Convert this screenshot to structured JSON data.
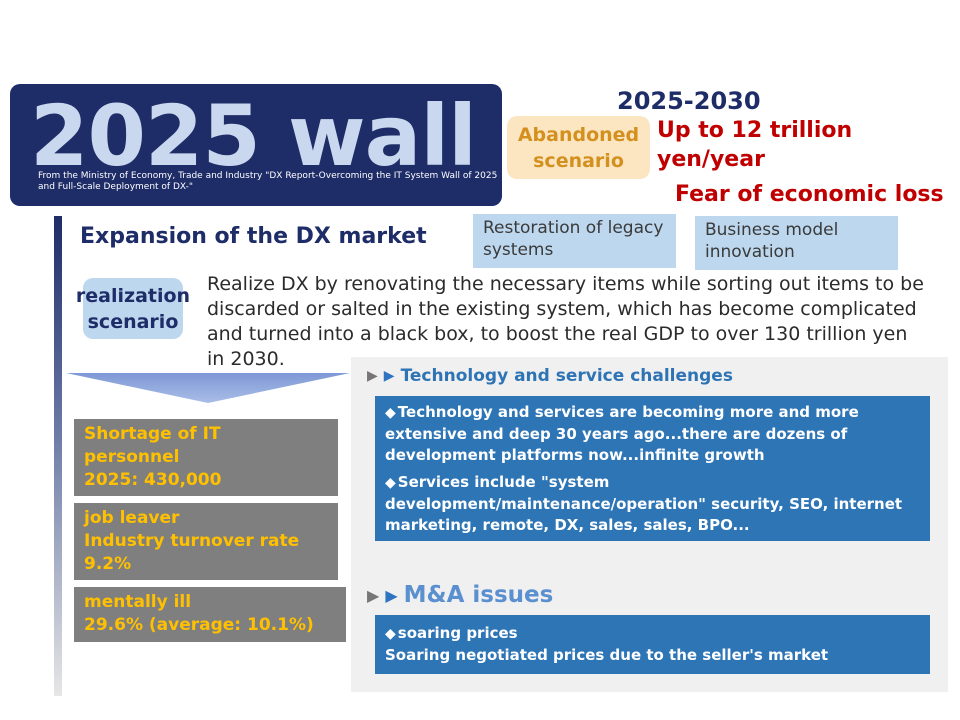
{
  "banner": {
    "title": "2025 wall",
    "source": "From the Ministry of Economy, Trade and Industry \"DX Report-Overcoming the IT System Wall of 2025 and Full-Scale Deployment of DX-\""
  },
  "abandoned": {
    "period": "2025-2030",
    "badge": "Abandoned scenario",
    "loss_amount": "Up to 12 trillion yen/year",
    "fear": "Fear of economic loss"
  },
  "dx": {
    "heading": "Expansion of the DX market",
    "tags": [
      "Restoration of legacy systems",
      "Business model innovation"
    ],
    "realization_badge": "realization scenario",
    "realization_text": "Realize DX by renovating the necessary items while sorting out items to be discarded or salted in the existing system, which has become complicated and turned into a black box, to boost the real GDP to over 130 trillion yen in 2030."
  },
  "stats": [
    {
      "lines": [
        "Shortage of IT",
        "personnel",
        "2025: 430,000"
      ]
    },
    {
      "lines": [
        "job leaver",
        "Industry turnover rate",
        "9.2%"
      ]
    },
    {
      "lines": [
        "mentally ill",
        "29.6% (average: 10.1%)"
      ]
    }
  ],
  "tech": {
    "heading": "Technology and service challenges",
    "bullets": [
      {
        "title": "Technology and services are becoming more and more",
        "body": "extensive and deep 30 years ago...there are dozens of development platforms now...infinite growth"
      },
      {
        "title": "Services include \"system",
        "body": "development/maintenance/operation\" security, SEO, internet marketing, remote, DX, sales, sales, BPO..."
      }
    ]
  },
  "ma": {
    "heading": "M&A issues",
    "bullet_title": "soaring prices",
    "bullet_body": "Soaring negotiated prices due to the seller's market"
  },
  "icons": {
    "diamond": "◆",
    "triangle": "▶"
  },
  "colors": {
    "navy": "#1e2c68",
    "red": "#c00000",
    "orange": "#ffc000",
    "blue_box": "#2e75b6",
    "light_blue": "#bdd7ee"
  }
}
